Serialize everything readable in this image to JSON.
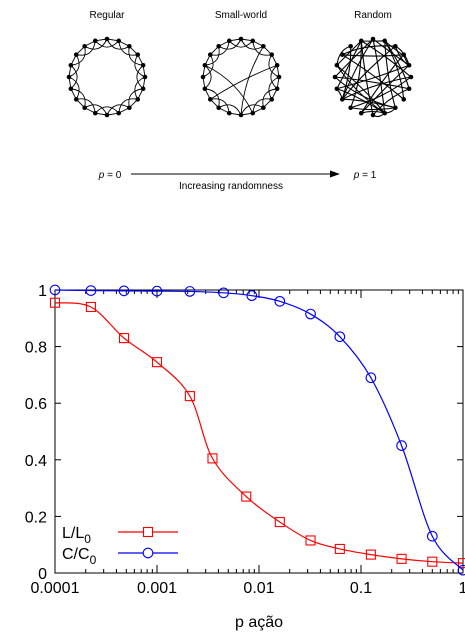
{
  "diagram": {
    "networks": [
      {
        "title": "Regular",
        "kind": "regular"
      },
      {
        "title": "Small-world",
        "kind": "smallworld"
      },
      {
        "title": "Random",
        "kind": "random"
      }
    ],
    "p_left_var": "p",
    "p_left_eq": " = 0",
    "p_right_var": "p",
    "p_right_eq": " = 1",
    "arrow_caption": "Increasing randomness"
  },
  "chart_data": {
    "type": "line",
    "xlabel": "p ação",
    "ylabel": "",
    "x_scale": "log",
    "xlim": [
      0.0001,
      1
    ],
    "ylim": [
      0,
      1
    ],
    "x_ticks": [
      {
        "value": 0.0001,
        "label": "0.0001"
      },
      {
        "value": 0.001,
        "label": "0.001"
      },
      {
        "value": 0.01,
        "label": "0.01"
      },
      {
        "value": 0.1,
        "label": "0.1"
      },
      {
        "value": 1,
        "label": "1"
      }
    ],
    "y_ticks": [
      {
        "value": 0,
        "label": "0"
      },
      {
        "value": 0.2,
        "label": "0.2"
      },
      {
        "value": 0.4,
        "label": "0.4"
      },
      {
        "value": 0.6,
        "label": "0.6"
      },
      {
        "value": 0.8,
        "label": "0.8"
      },
      {
        "value": 1,
        "label": "1"
      }
    ],
    "legend_position": "bottom-left",
    "series": [
      {
        "name": "L/L0",
        "name_main": "L/L",
        "name_sub": "0",
        "color": "#ff0000",
        "marker": "square",
        "x": [
          0.0001,
          0.000225,
          0.000475,
          0.001,
          0.0021,
          0.0035,
          0.0075,
          0.016,
          0.032,
          0.062,
          0.125,
          0.25,
          0.5,
          1
        ],
        "y": [
          0.955,
          0.94,
          0.83,
          0.745,
          0.625,
          0.405,
          0.27,
          0.18,
          0.115,
          0.085,
          0.065,
          0.05,
          0.04,
          0.035
        ]
      },
      {
        "name": "C/C0",
        "name_main": "C/C",
        "name_sub": "0",
        "color": "#0000ff",
        "marker": "circle",
        "x": [
          0.0001,
          0.000225,
          0.000475,
          0.001,
          0.0021,
          0.0045,
          0.0085,
          0.016,
          0.032,
          0.062,
          0.125,
          0.25,
          0.5,
          1
        ],
        "y": [
          1.0,
          0.998,
          0.997,
          0.996,
          0.995,
          0.99,
          0.98,
          0.96,
          0.915,
          0.835,
          0.69,
          0.45,
          0.13,
          0.01
        ]
      }
    ]
  }
}
